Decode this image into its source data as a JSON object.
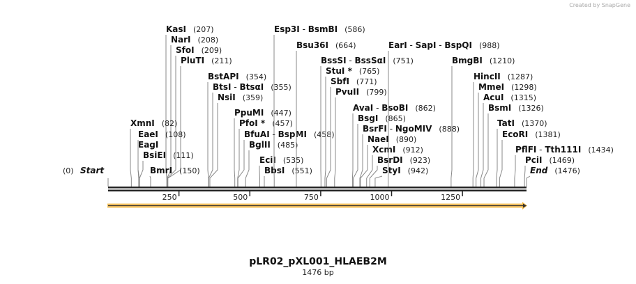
{
  "credit": "Created by SnapGene",
  "sequence": {
    "name": "pLR02_pXL001_HLAEB2M",
    "length_label": "1476 bp",
    "length": 1476
  },
  "ticks": [
    "250",
    "500",
    "750",
    "1000",
    "1250"
  ],
  "tick_values": [
    250,
    500,
    750,
    1000,
    1250
  ],
  "colors": {
    "feature_arrow": "#f5b944",
    "line": "#222222"
  },
  "sites": [
    {
      "names": [
        "Start"
      ],
      "pos": "(0)",
      "site": 0,
      "italic": true,
      "pos_first": true
    },
    {
      "names": [
        "KasI"
      ],
      "pos": "(207)",
      "site": 207
    },
    {
      "names": [
        "NarI"
      ],
      "pos": "(208)",
      "site": 208
    },
    {
      "names": [
        "SfoI"
      ],
      "pos": "(209)",
      "site": 209
    },
    {
      "names": [
        "PluTI"
      ],
      "pos": "(211)",
      "site": 211
    },
    {
      "names": [
        "XmnI"
      ],
      "pos": "(82)",
      "site": 82
    },
    {
      "names": [
        "EaeI"
      ],
      "pos": "(108)",
      "site": 108
    },
    {
      "names": [
        "EagI"
      ],
      "pos": "",
      "site": 110
    },
    {
      "names": [
        "BsiEI"
      ],
      "pos": "(111)",
      "site": 111
    },
    {
      "names": [
        "BmrI"
      ],
      "pos": "(150)",
      "site": 150
    },
    {
      "names": [
        "BstAPI"
      ],
      "pos": "(354)",
      "site": 354
    },
    {
      "names": [
        "BtsI",
        "BtsαI"
      ],
      "pos": "(355)",
      "site": 355
    },
    {
      "names": [
        "NsiI"
      ],
      "pos": "(359)",
      "site": 359
    },
    {
      "names": [
        "PpuMI"
      ],
      "pos": "(447)",
      "site": 447
    },
    {
      "names": [
        "PfoI *"
      ],
      "pos": "(457)",
      "site": 457
    },
    {
      "names": [
        "BfuAI",
        "BspMI"
      ],
      "pos": "(458)",
      "site": 458
    },
    {
      "names": [
        "BglII"
      ],
      "pos": "(485)",
      "site": 485
    },
    {
      "names": [
        "EciI"
      ],
      "pos": "(535)",
      "site": 535
    },
    {
      "names": [
        "BbsI"
      ],
      "pos": "(551)",
      "site": 551
    },
    {
      "names": [
        "Esp3I",
        "BsmBI"
      ],
      "pos": "(586)",
      "site": 586
    },
    {
      "names": [
        "Bsu36I"
      ],
      "pos": "(664)",
      "site": 664
    },
    {
      "names": [
        "BssSI",
        "BssSαI"
      ],
      "pos": "(751)",
      "site": 751
    },
    {
      "names": [
        "StuI *"
      ],
      "pos": "(765)",
      "site": 765
    },
    {
      "names": [
        "SbfI"
      ],
      "pos": "(771)",
      "site": 771
    },
    {
      "names": [
        "PvuII"
      ],
      "pos": "(799)",
      "site": 799
    },
    {
      "names": [
        "AvaI",
        "BsoBI"
      ],
      "pos": "(862)",
      "site": 862
    },
    {
      "names": [
        "BsgI"
      ],
      "pos": "(865)",
      "site": 865
    },
    {
      "names": [
        "BsrFI",
        "NgoMIV"
      ],
      "pos": "(888)",
      "site": 888
    },
    {
      "names": [
        "NaeI"
      ],
      "pos": "(890)",
      "site": 890
    },
    {
      "names": [
        "XcmI"
      ],
      "pos": "(912)",
      "site": 912
    },
    {
      "names": [
        "BsrDI"
      ],
      "pos": "(923)",
      "site": 923
    },
    {
      "names": [
        "StyI"
      ],
      "pos": "(942)",
      "site": 942
    },
    {
      "names": [
        "EarI",
        "SapI",
        "BspQI"
      ],
      "pos": "(988)",
      "site": 988
    },
    {
      "names": [
        "BmgBI"
      ],
      "pos": "(1210)",
      "site": 1210
    },
    {
      "names": [
        "HincII"
      ],
      "pos": "(1287)",
      "site": 1287
    },
    {
      "names": [
        "MmeI"
      ],
      "pos": "(1298)",
      "site": 1298
    },
    {
      "names": [
        "AcuI"
      ],
      "pos": "(1315)",
      "site": 1315
    },
    {
      "names": [
        "BsmI"
      ],
      "pos": "(1326)",
      "site": 1326
    },
    {
      "names": [
        "TatI"
      ],
      "pos": "(1370)",
      "site": 1370
    },
    {
      "names": [
        "EcoRI"
      ],
      "pos": "(1381)",
      "site": 1381
    },
    {
      "names": [
        "PflFI",
        "Tth111I"
      ],
      "pos": "(1434)",
      "site": 1434
    },
    {
      "names": [
        "PciI"
      ],
      "pos": "(1469)",
      "site": 1469
    },
    {
      "names": [
        "End"
      ],
      "pos": "(1476)",
      "site": 1476,
      "italic": true
    }
  ]
}
